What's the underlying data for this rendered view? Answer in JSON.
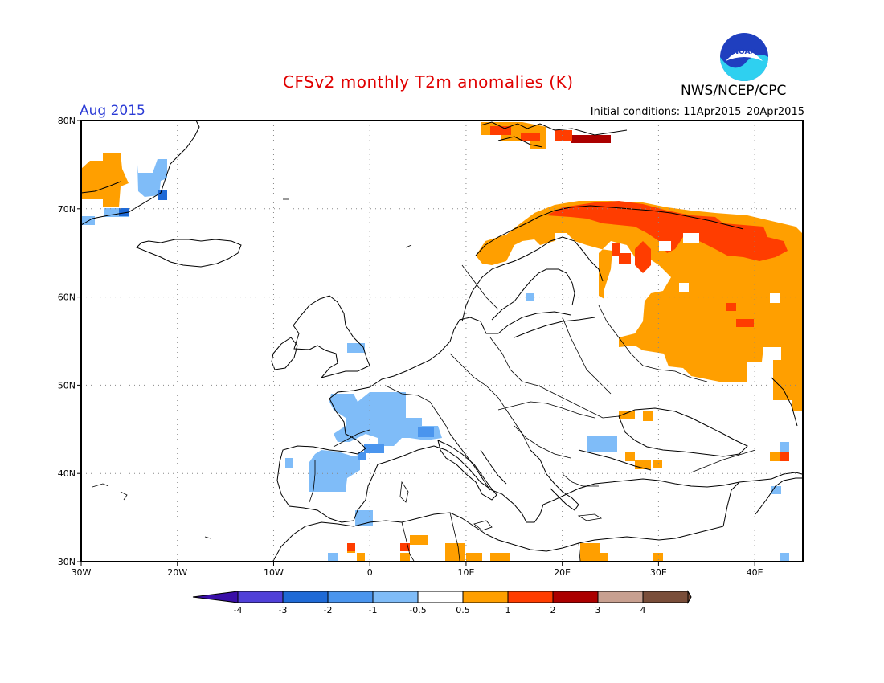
{
  "header": {
    "title": "CFSv2 monthly T2m anomalies (K)",
    "month": "Aug 2015",
    "initial_conditions": "Initial conditions: 11Apr2015–20Apr2015",
    "agency": "NWS/NCEP/CPC",
    "logo_text": "NOAA"
  },
  "map": {
    "region": {
      "lon": [
        -30,
        45
      ],
      "lat": [
        30,
        80
      ]
    },
    "x_ticks": [
      "30W",
      "20W",
      "10W",
      "0",
      "10E",
      "20E",
      "30E",
      "40E"
    ],
    "y_ticks": [
      "30N",
      "40N",
      "50N",
      "60N",
      "70N",
      "80N"
    ],
    "grid": "dotted",
    "anomaly_regions": [
      {
        "name": "Greenland south tip",
        "category": "0.5 to 1",
        "approx_lon": [
          -30,
          -26
        ],
        "approx_lat": [
          70,
          74
        ]
      },
      {
        "name": "Greenland east coast",
        "category": "-0.5 to -1",
        "approx_lon": [
          -24,
          -21
        ],
        "approx_lat": [
          70,
          74
        ]
      },
      {
        "name": "Svalbard",
        "category": "1 to 3",
        "approx_lon": [
          12,
          25
        ],
        "approx_lat": [
          77,
          80
        ]
      },
      {
        "name": "Scandinavia north & Russia",
        "category": "0.5 to 2",
        "approx_lon": [
          10,
          45
        ],
        "approx_lat": [
          55,
          71
        ]
      },
      {
        "name": "France & Iberia",
        "category": "-0.5 to -1",
        "approx_lon": [
          -9,
          8
        ],
        "approx_lat": [
          37,
          48
        ]
      },
      {
        "name": "Black Sea / Turkey",
        "category": "0.5 to 1",
        "approx_lon": [
          22,
          31
        ],
        "approx_lat": [
          40,
          43
        ]
      },
      {
        "name": "North Africa spots",
        "category": "0.5 to 1",
        "approx_lon": [
          -2,
          30
        ],
        "approx_lat": [
          30,
          33
        ]
      }
    ]
  },
  "colorbar": {
    "labels": [
      "-4",
      "-3",
      "-2",
      "-1",
      "-0.5",
      "0.5",
      "1",
      "2",
      "3",
      "4"
    ],
    "colors": [
      "#3a0fa8",
      "#5040d8",
      "#1f6ad6",
      "#4a95ee",
      "#7fbcf8",
      "#ffffff",
      "#ff9f00",
      "#ff3d00",
      "#ab0000",
      "#c8a090",
      "#7a4e3a"
    ]
  }
}
